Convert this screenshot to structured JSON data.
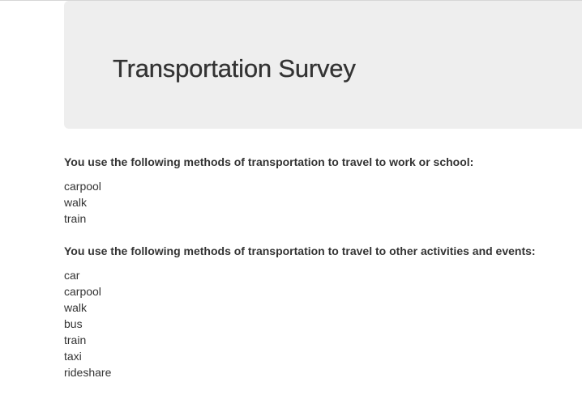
{
  "header": {
    "title": "Transportation Survey"
  },
  "work_school": {
    "heading": "You use the following methods of transportation to travel to work or school:",
    "methods": [
      "carpool",
      "walk",
      "train"
    ]
  },
  "other_activities": {
    "heading": "You use the following methods of transportation to travel to other activities and events:",
    "methods": [
      "car",
      "carpool",
      "walk",
      "bus",
      "train",
      "taxi",
      "rideshare"
    ]
  }
}
